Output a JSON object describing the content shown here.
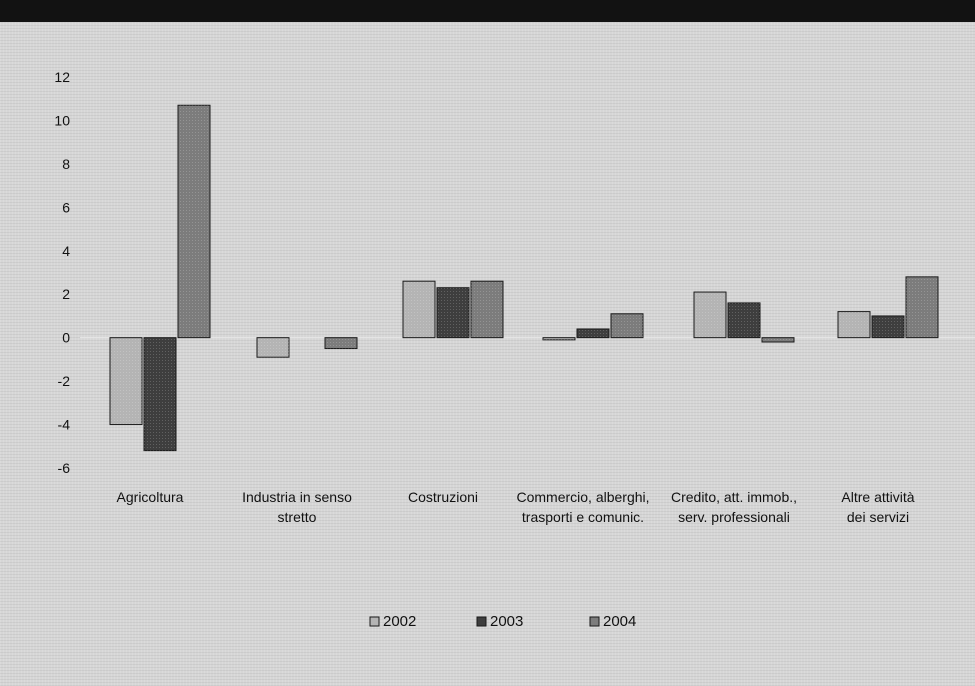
{
  "chart_data": {
    "type": "bar",
    "title": "",
    "xlabel": "",
    "ylabel": "",
    "ylim": [
      -6,
      12
    ],
    "yticks": [
      12,
      10,
      8,
      6,
      4,
      2,
      0,
      -2,
      -4,
      -6
    ],
    "grid": false,
    "legend_position": "bottom-center",
    "categories": [
      [
        "Agricoltura"
      ],
      [
        "Industria in senso",
        "stretto"
      ],
      [
        "Costruzioni"
      ],
      [
        "Commercio, alberghi,",
        "trasporti e comunic."
      ],
      [
        "Credito, att. immob.,",
        "serv. professionali"
      ],
      [
        "Altre attività",
        "dei servizi"
      ]
    ],
    "series": [
      {
        "name": "2002",
        "color": "#b4b4b4",
        "values": [
          -4.0,
          -0.9,
          2.6,
          -0.1,
          2.1,
          1.2
        ]
      },
      {
        "name": "2003",
        "color": "#3e3e3e",
        "values": [
          -5.2,
          0.0,
          2.3,
          0.4,
          1.6,
          1.0
        ]
      },
      {
        "name": "2004",
        "color": "#7c7c7c",
        "values": [
          10.7,
          -0.5,
          2.6,
          1.1,
          -0.2,
          2.8
        ]
      }
    ]
  }
}
